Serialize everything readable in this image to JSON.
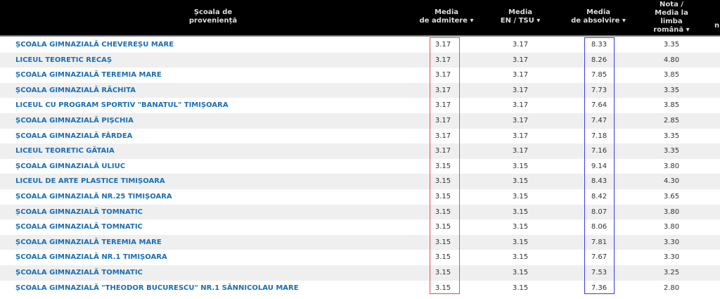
{
  "header": {
    "school": [
      "Școala de",
      "proveniență"
    ],
    "admitere": [
      "Media",
      "de admitere ▾"
    ],
    "en": [
      "Media",
      "EN / TSU ▾"
    ],
    "absolvire": [
      "Media",
      "de absolvire ▾"
    ],
    "nota": [
      "Nota /",
      "Media la",
      "limba",
      "română ▾"
    ],
    "partial": "n"
  },
  "highlight_colors": {
    "admitere": "#e74c4c",
    "absolvire": "#3a3ae8"
  },
  "rows": [
    {
      "school": "ȘCOALA GIMNAZIALĂ CHEVEREȘU MARE",
      "admitere": "3.17",
      "en": "3.17",
      "absolvire": "8.33",
      "nota": "3.35"
    },
    {
      "school": "LICEUL TEORETIC RECAȘ",
      "admitere": "3.17",
      "en": "3.17",
      "absolvire": "8.26",
      "nota": "4.80"
    },
    {
      "school": "ȘCOALA GIMNAZIALĂ TEREMIA MARE",
      "admitere": "3.17",
      "en": "3.17",
      "absolvire": "7.85",
      "nota": "3.85"
    },
    {
      "school": "ȘCOALA GIMNAZIALĂ RĂCHITA",
      "admitere": "3.17",
      "en": "3.17",
      "absolvire": "7.73",
      "nota": "3.35"
    },
    {
      "school": "LICEUL CU PROGRAM SPORTIV \"BANATUL\" TIMIȘOARA",
      "admitere": "3.17",
      "en": "3.17",
      "absolvire": "7.64",
      "nota": "3.85"
    },
    {
      "school": "ȘCOALA GIMNAZIALĂ PIȘCHIA",
      "admitere": "3.17",
      "en": "3.17",
      "absolvire": "7.47",
      "nota": "2.85"
    },
    {
      "school": "ȘCOALA GIMNAZIALĂ FÂRDEA",
      "admitere": "3.17",
      "en": "3.17",
      "absolvire": "7.18",
      "nota": "3.35"
    },
    {
      "school": "LICEUL TEORETIC GĂTAIA",
      "admitere": "3.17",
      "en": "3.17",
      "absolvire": "7.16",
      "nota": "3.35"
    },
    {
      "school": "ȘCOALA GIMNAZIALĂ ULIUC",
      "admitere": "3.15",
      "en": "3.15",
      "absolvire": "9.14",
      "nota": "3.80"
    },
    {
      "school": "LICEUL DE ARTE PLASTICE TIMIȘOARA",
      "admitere": "3.15",
      "en": "3.15",
      "absolvire": "8.43",
      "nota": "4.30"
    },
    {
      "school": "ȘCOALA GIMNAZIALĂ NR.25 TIMIȘOARA",
      "admitere": "3.15",
      "en": "3.15",
      "absolvire": "8.42",
      "nota": "3.65"
    },
    {
      "school": "ȘCOALA GIMNAZIALĂ TOMNATIC",
      "admitere": "3.15",
      "en": "3.15",
      "absolvire": "8.07",
      "nota": "3.80"
    },
    {
      "school": "ȘCOALA GIMNAZIALĂ TOMNATIC",
      "admitere": "3.15",
      "en": "3.15",
      "absolvire": "8.06",
      "nota": "3.80"
    },
    {
      "school": "ȘCOALA GIMNAZIALĂ TEREMIA MARE",
      "admitere": "3.15",
      "en": "3.15",
      "absolvire": "7.81",
      "nota": "3.30"
    },
    {
      "school": "ȘCOALA GIMNAZIALĂ NR.1 TIMIȘOARA",
      "admitere": "3.15",
      "en": "3.15",
      "absolvire": "7.67",
      "nota": "3.30"
    },
    {
      "school": "ȘCOALA GIMNAZIALĂ TOMNATIC",
      "admitere": "3.15",
      "en": "3.15",
      "absolvire": "7.53",
      "nota": "3.25"
    },
    {
      "school": "ȘCOALA GIMNAZIALĂ \"THEODOR BUCURESCU\" NR.1 SÂNNICOLAU MARE",
      "admitere": "3.15",
      "en": "3.15",
      "absolvire": "7.36",
      "nota": "2.80"
    }
  ]
}
